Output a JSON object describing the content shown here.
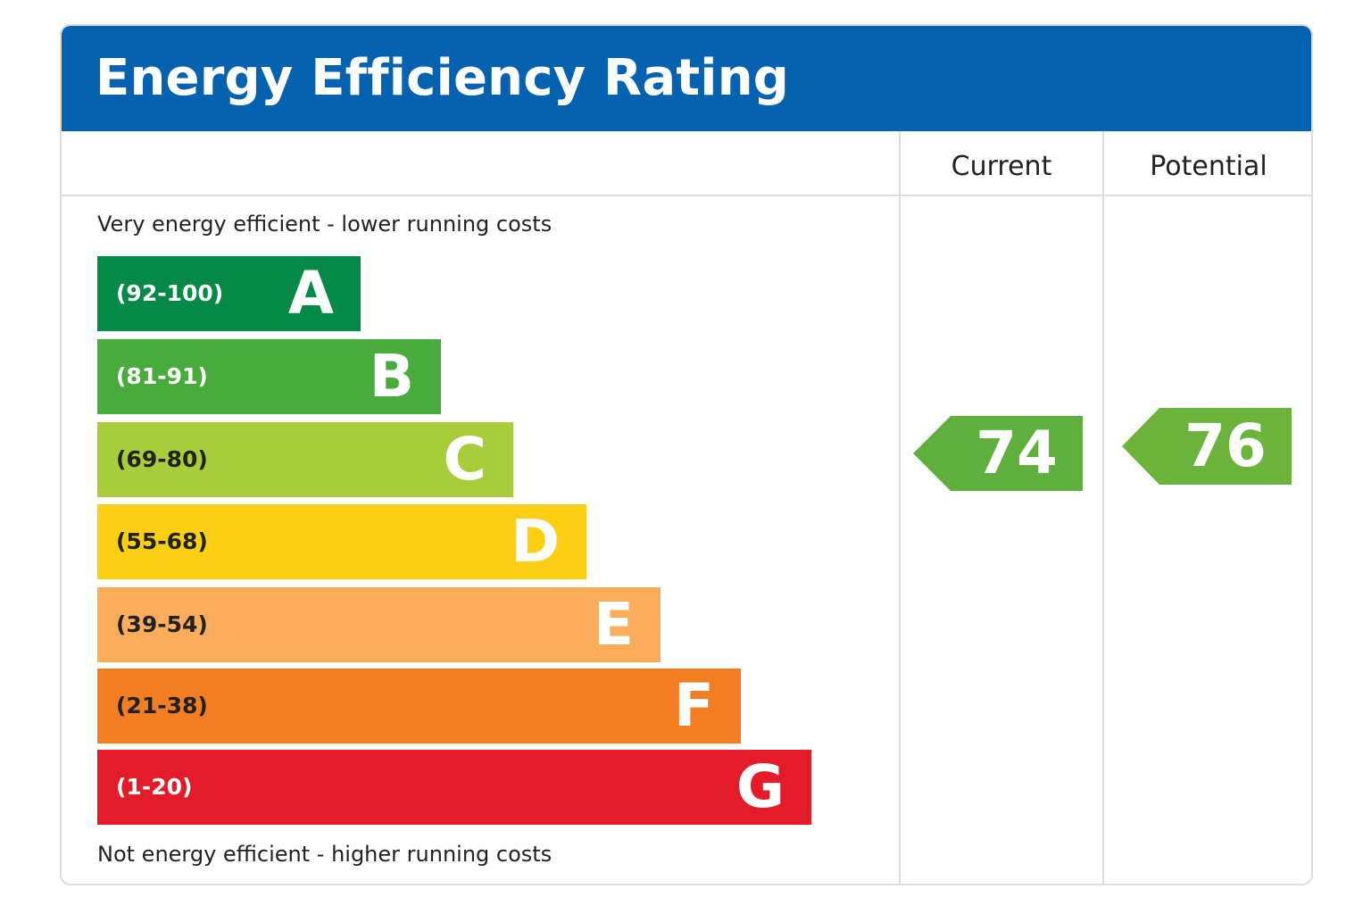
{
  "chart_data": {
    "type": "bar",
    "title": "Energy Efficiency Rating",
    "columns": [
      "Current",
      "Potential"
    ],
    "top_caption": "Very energy efficient - lower running costs",
    "bottom_caption": "Not energy efficient - higher running costs",
    "bands": [
      {
        "letter": "A",
        "range": "(92-100)",
        "min": 92,
        "max": 100,
        "color": "#048a46",
        "text_color": "#ffffff"
      },
      {
        "letter": "B",
        "range": "(81-91)",
        "min": 81,
        "max": 91,
        "color": "#47ac3c",
        "text_color": "#ffffff"
      },
      {
        "letter": "C",
        "range": "(69-80)",
        "min": 69,
        "max": 80,
        "color": "#a8cd3a",
        "text_color": "#222222"
      },
      {
        "letter": "D",
        "range": "(55-68)",
        "min": 55,
        "max": 68,
        "color": "#fdcf12",
        "text_color": "#222222"
      },
      {
        "letter": "E",
        "range": "(39-54)",
        "min": 39,
        "max": 54,
        "color": "#fbad5c",
        "text_color": "#222222"
      },
      {
        "letter": "F",
        "range": "(21-38)",
        "min": 21,
        "max": 38,
        "color": "#f27d22",
        "text_color": "#222222"
      },
      {
        "letter": "G",
        "range": "(1-20)",
        "min": 1,
        "max": 20,
        "color": "#e41b28",
        "text_color": "#ffffff"
      }
    ],
    "current": {
      "value": 74,
      "band": "C",
      "color": "#5faf3c"
    },
    "potential": {
      "value": 76,
      "band": "C",
      "color": "#6bb43c"
    }
  }
}
